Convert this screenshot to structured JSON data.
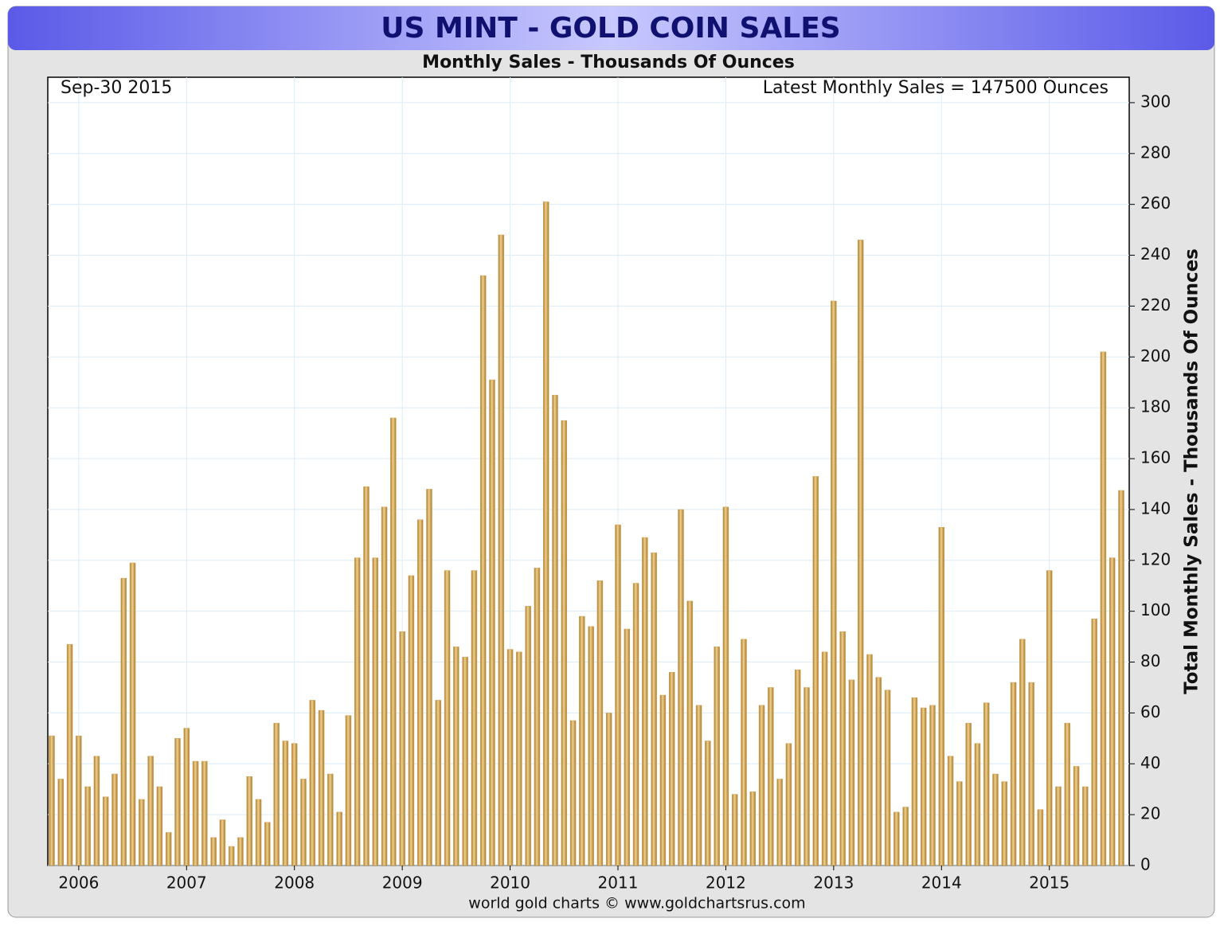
{
  "chart_data": {
    "type": "bar",
    "title": "US MINT - GOLD COIN SALES",
    "subtitle": "Monthly Sales - Thousands Of Ounces",
    "date_label": "Sep-30  2015",
    "latest_label": "Latest Monthly Sales = 147500 Ounces",
    "y_label": "Total Monthly Sales - Thousands Of Ounces",
    "footer": "world gold charts © www.goldchartsrus.com",
    "categories": [
      null,
      null,
      null,
      "2006",
      null,
      null,
      null,
      null,
      null,
      null,
      null,
      null,
      null,
      null,
      null,
      "2007",
      null,
      null,
      null,
      null,
      null,
      null,
      null,
      null,
      null,
      null,
      null,
      "2008",
      null,
      null,
      null,
      null,
      null,
      null,
      null,
      null,
      null,
      null,
      null,
      "2009",
      null,
      null,
      null,
      null,
      null,
      null,
      null,
      null,
      null,
      null,
      null,
      "2010",
      null,
      null,
      null,
      null,
      null,
      null,
      null,
      null,
      null,
      null,
      null,
      "2011",
      null,
      null,
      null,
      null,
      null,
      null,
      null,
      null,
      null,
      null,
      null,
      "2012",
      null,
      null,
      null,
      null,
      null,
      null,
      null,
      null,
      null,
      null,
      null,
      "2013",
      null,
      null,
      null,
      null,
      null,
      null,
      null,
      null,
      null,
      null,
      null,
      "2014",
      null,
      null,
      null,
      null,
      null,
      null,
      null,
      null,
      null,
      null,
      null,
      "2015",
      null,
      null,
      null,
      null,
      null,
      null,
      null,
      null
    ],
    "values": [
      51,
      34,
      87,
      51,
      31,
      43,
      27,
      36,
      113,
      119,
      26,
      43,
      31,
      13,
      50,
      54,
      41,
      41,
      11,
      18,
      7.5,
      11,
      35,
      26,
      17,
      56,
      49,
      48,
      34,
      65,
      61,
      36,
      21,
      59,
      121,
      149,
      121,
      141,
      176,
      92,
      114,
      136,
      148,
      65,
      116,
      86,
      82,
      116,
      232,
      191,
      248,
      85,
      84,
      102,
      117,
      261,
      185,
      175,
      57,
      98,
      94,
      112,
      60,
      134,
      93,
      111,
      129,
      123,
      67,
      76,
      140,
      104,
      63,
      49,
      86,
      141,
      28,
      89,
      29,
      63,
      70,
      34,
      48,
      77,
      70,
      153,
      84,
      222,
      92,
      73,
      246,
      83,
      74,
      69,
      21,
      23,
      66,
      62,
      63,
      133,
      43,
      33,
      56,
      48,
      64,
      36,
      33,
      72,
      89,
      72,
      22,
      116,
      31,
      56,
      39,
      31,
      97,
      202,
      121,
      147.5
    ],
    "color": "#cfa55a",
    "ylim": [
      0,
      310
    ],
    "yticks": [
      0,
      20,
      40,
      60,
      80,
      100,
      120,
      140,
      160,
      180,
      200,
      220,
      240,
      260,
      280,
      300
    ],
    "grid": true
  }
}
